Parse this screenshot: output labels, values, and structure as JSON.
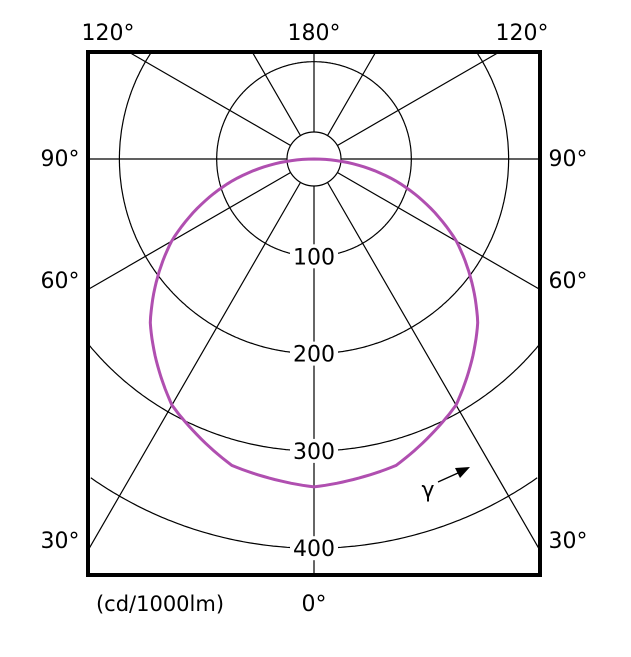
{
  "chart_data": {
    "type": "polar-line",
    "unit_label": "(cd/1000lm)",
    "radial_ticks": [
      100,
      200,
      300,
      400
    ],
    "radial_range": [
      0,
      400
    ],
    "angle_labels": {
      "top_left": "120°",
      "top_center": "180°",
      "top_right": "120°",
      "left": [
        "90°",
        "60°",
        "30°"
      ],
      "right": [
        "90°",
        "60°",
        "30°"
      ],
      "bottom": "0°"
    },
    "radial_lines_deg": [
      0,
      30,
      60,
      90,
      120,
      150,
      180
    ],
    "gamma_label": "γ",
    "series": [
      {
        "color": "#b04fb0",
        "angles_deg": [
          0,
          15,
          30,
          45,
          60,
          75,
          90
        ],
        "values": [
          337,
          326,
          292,
          238,
          169,
          87,
          0
        ],
        "symmetric": true
      }
    ],
    "grid": true
  }
}
